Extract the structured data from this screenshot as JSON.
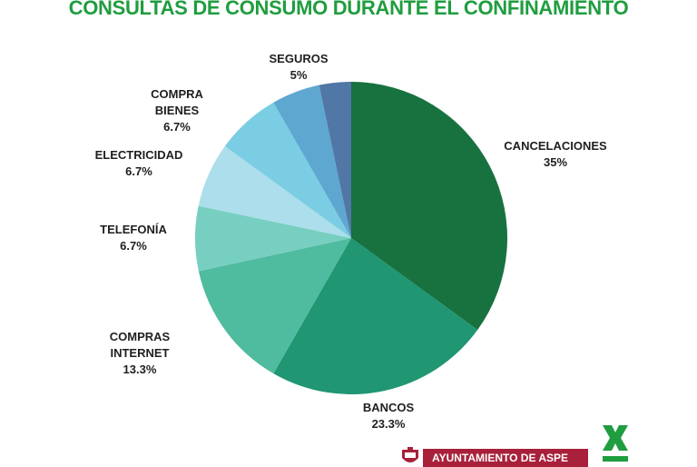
{
  "title": "CONSULTAS DE CONSUMO DURANTE EL CONFINAMIENTO",
  "chart_data": {
    "type": "pie",
    "title": "CONSULTAS DE CONSUMO DURANTE EL CONFINAMIENTO",
    "slices": [
      {
        "name": "CANCELACIONES",
        "label_lines": [
          "CANCELACIONES"
        ],
        "value": 35,
        "display": "35%",
        "color": "#17723f"
      },
      {
        "name": "BANCOS",
        "label_lines": [
          "BANCOS"
        ],
        "value": 23.3,
        "display": "23.3%",
        "color": "#209673"
      },
      {
        "name": "COMPRAS INTERNET",
        "label_lines": [
          "COMPRAS",
          "INTERNET"
        ],
        "value": 13.3,
        "display": "13.3%",
        "color": "#4fbb9f"
      },
      {
        "name": "TELEFONÍA",
        "label_lines": [
          "TELEFONÍA"
        ],
        "value": 6.7,
        "display": "6.7%",
        "color": "#77cfc1"
      },
      {
        "name": "ELECTRICIDAD",
        "label_lines": [
          "ELECTRICIDAD"
        ],
        "value": 6.7,
        "display": "6.7%",
        "color": "#acdeeb"
      },
      {
        "name": "COMPRA BIENES",
        "label_lines": [
          "COMPRA",
          "BIENES"
        ],
        "value": 6.7,
        "display": "6.7%",
        "color": "#7bcde3"
      },
      {
        "name": "SEGUROS",
        "label_lines": [
          "SEGUROS"
        ],
        "value": 5,
        "display": "5%",
        "color": "#5ea7d0"
      },
      {
        "name": "",
        "label_lines": [],
        "value": 3.3,
        "display": "",
        "color": "#5077a6"
      }
    ],
    "start_angle_deg": 0,
    "direction": "clockwise"
  },
  "footer": {
    "org_text": "AYUNTAMIENTO DE ASPE",
    "org_color": "#a8203a",
    "brand_color": "#1f9d3f"
  }
}
